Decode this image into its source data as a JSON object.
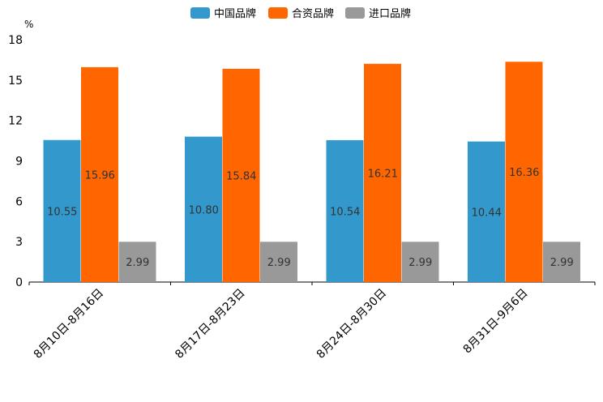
{
  "chart_data": {
    "type": "bar",
    "unit_label": "%",
    "categories": [
      "8月10日-8月16日",
      "8月17日-8月23日",
      "8月24日-8月30日",
      "8月31日-9月6日"
    ],
    "series": [
      {
        "name": "中国品牌",
        "color": "#3399cc",
        "values": [
          10.55,
          10.8,
          10.54,
          10.44
        ],
        "labels": [
          "10.55",
          "10.80",
          "10.54",
          "10.44"
        ]
      },
      {
        "name": "合资品牌",
        "color": "#ff6600",
        "values": [
          15.96,
          15.84,
          16.21,
          16.36
        ],
        "labels": [
          "15.96",
          "15.84",
          "16.21",
          "16.36"
        ]
      },
      {
        "name": "进口品牌",
        "color": "#999999",
        "values": [
          2.99,
          2.99,
          2.99,
          2.99
        ],
        "labels": [
          "2.99",
          "2.99",
          "2.99",
          "2.99"
        ]
      }
    ],
    "ylim": [
      0,
      18
    ],
    "yticks": [
      "0",
      "3",
      "6",
      "9",
      "12",
      "15",
      "18"
    ],
    "grid": false,
    "legend_position": "top-center"
  }
}
